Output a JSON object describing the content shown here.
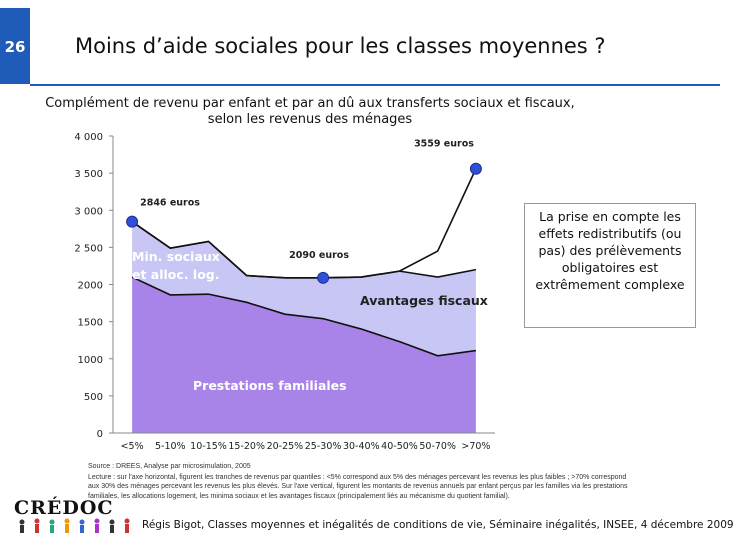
{
  "slide": {
    "number": "26",
    "title": "Moins d’aide sociales pour les classes moyennes ?",
    "subtitle": "Complément de revenu par enfant et par an dû aux transferts sociaux et fiscaux, selon les revenus des ménages"
  },
  "callout": {
    "text": "La prise en compte les effets redistributifs (ou pas) des prélèvements obligatoires est extrêmement complexe"
  },
  "source": {
    "line1": "Source : DREES, Analyse par microsimulation, 2005",
    "line2": "Lecture : sur l'axe horizontal, figurent les tranches de revenus par quantiles : <5% correspond aux 5% des ménages percevant les revenus les plus faibles ; >70% correspond aux 30% des ménages percevant les revenus les plus élevés. Sur l'axe vertical, figurent les montants de revenus annuels par enfant perçus par les familles via les prestations familiales, les allocations logement, les minima sociaux et les avantages fiscaux (principalement liés au mécanisme du quotient familial)."
  },
  "footer": {
    "text": "Régis Bigot, Classes moyennes et inégalités de conditions de vie, Séminaire inégalités, INSEE, 4 décembre 2009"
  },
  "logo": {
    "text": "CRÉDOC"
  },
  "colors": {
    "accent": "#1f5bb8",
    "prestations": "#a884e8",
    "minima": "#c8c6f4",
    "marker": "#2f4fd8"
  },
  "chart_data": {
    "type": "area",
    "categories": [
      "<5%",
      "5-10%",
      "10-15%",
      "15-20%",
      "20-25%",
      "25-30%",
      "30-40%",
      "40-50%",
      "50-70%",
      ">70%"
    ],
    "series": [
      {
        "name": "Prestations familiales",
        "values": [
          2100,
          1860,
          1870,
          1760,
          1600,
          1540,
          1400,
          1230,
          1040,
          1110
        ]
      },
      {
        "name": "Min. sociaux et alloc. log.",
        "values": [
          2846,
          2490,
          2580,
          2120,
          2090,
          2090,
          2100,
          2180,
          2100,
          2200
        ]
      },
      {
        "name": "Avantages fiscaux",
        "values": [
          2846,
          2490,
          2580,
          2120,
          2090,
          2090,
          2100,
          2180,
          2450,
          3559
        ]
      }
    ],
    "area_labels": {
      "prestations": "Prestations familiales",
      "minima": "Min. sociaux et alloc. log.",
      "avantages": "Avantages fiscaux"
    },
    "annotations": [
      {
        "label": "2846 euros",
        "category": "<5%",
        "value": 2846
      },
      {
        "label": "2090 euros",
        "category": "25-30%",
        "value": 2090
      },
      {
        "label": "3559 euros",
        "category": ">70%",
        "value": 3559
      }
    ],
    "ylim": [
      0,
      4000
    ],
    "yticks": [
      "0",
      "500",
      "1000",
      "1500",
      "2000",
      "2 500",
      "3 000",
      "3 500",
      "4 000"
    ],
    "grid": false
  }
}
